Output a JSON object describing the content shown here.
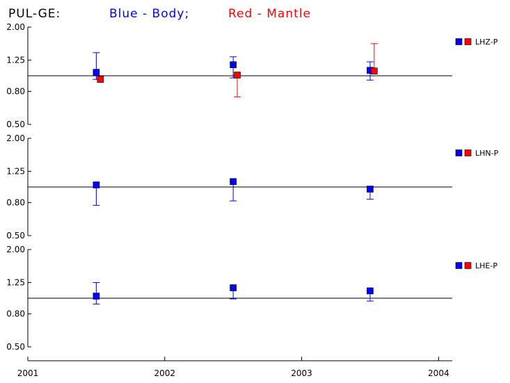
{
  "title": {
    "station": "PUL-GE:",
    "blue_label": "Blue - Body;",
    "red_label": "Red - Mantle",
    "blue_color": "#0000ff",
    "red_color": "#ff0000"
  },
  "chart_data": {
    "type": "scatter",
    "x_ticks": [
      "2001",
      "2002",
      "2003",
      "2004"
    ],
    "xlim": [
      2001,
      2004.1
    ],
    "y_scale": "log",
    "y_ticks": [
      "0.50",
      "0.80",
      "1.25",
      "2.00"
    ],
    "ylim": [
      0.5,
      2.0
    ],
    "reference_line": 1.0,
    "panels": [
      {
        "label": "LHZ-P",
        "series": [
          {
            "name": "Body",
            "color": "#0000ff",
            "points": [
              {
                "x": 2001.5,
                "y": 1.05,
                "lo": 0.95,
                "hi": 1.39
              },
              {
                "x": 2002.5,
                "y": 1.17,
                "lo": 0.97,
                "hi": 1.31
              },
              {
                "x": 2003.5,
                "y": 1.08,
                "lo": 0.94,
                "hi": 1.22
              }
            ]
          },
          {
            "name": "Mantle",
            "color": "#ff0000",
            "points": [
              {
                "x": 2001.53,
                "y": 0.95,
                "lo": 0.95,
                "hi": 0.95
              },
              {
                "x": 2002.53,
                "y": 1.01,
                "lo": 0.74,
                "hi": 1.01
              },
              {
                "x": 2003.53,
                "y": 1.07,
                "lo": 1.07,
                "hi": 1.58
              }
            ]
          }
        ]
      },
      {
        "label": "LHN-P",
        "series": [
          {
            "name": "Body",
            "color": "#0000ff",
            "points": [
              {
                "x": 2001.5,
                "y": 1.03,
                "lo": 0.77,
                "hi": 1.06
              },
              {
                "x": 2002.5,
                "y": 1.08,
                "lo": 0.82,
                "hi": 1.08
              },
              {
                "x": 2003.5,
                "y": 0.97,
                "lo": 0.84,
                "hi": 1.01
              }
            ]
          }
        ]
      },
      {
        "label": "LHE-P",
        "series": [
          {
            "name": "Body",
            "color": "#0000ff",
            "points": [
              {
                "x": 2001.5,
                "y": 1.03,
                "lo": 0.92,
                "hi": 1.25
              },
              {
                "x": 2002.5,
                "y": 1.16,
                "lo": 0.99,
                "hi": 1.16
              },
              {
                "x": 2003.5,
                "y": 1.11,
                "lo": 0.96,
                "hi": 1.11
              }
            ]
          }
        ]
      }
    ],
    "legend_colors": [
      "#0000ff",
      "#ff0000"
    ]
  }
}
